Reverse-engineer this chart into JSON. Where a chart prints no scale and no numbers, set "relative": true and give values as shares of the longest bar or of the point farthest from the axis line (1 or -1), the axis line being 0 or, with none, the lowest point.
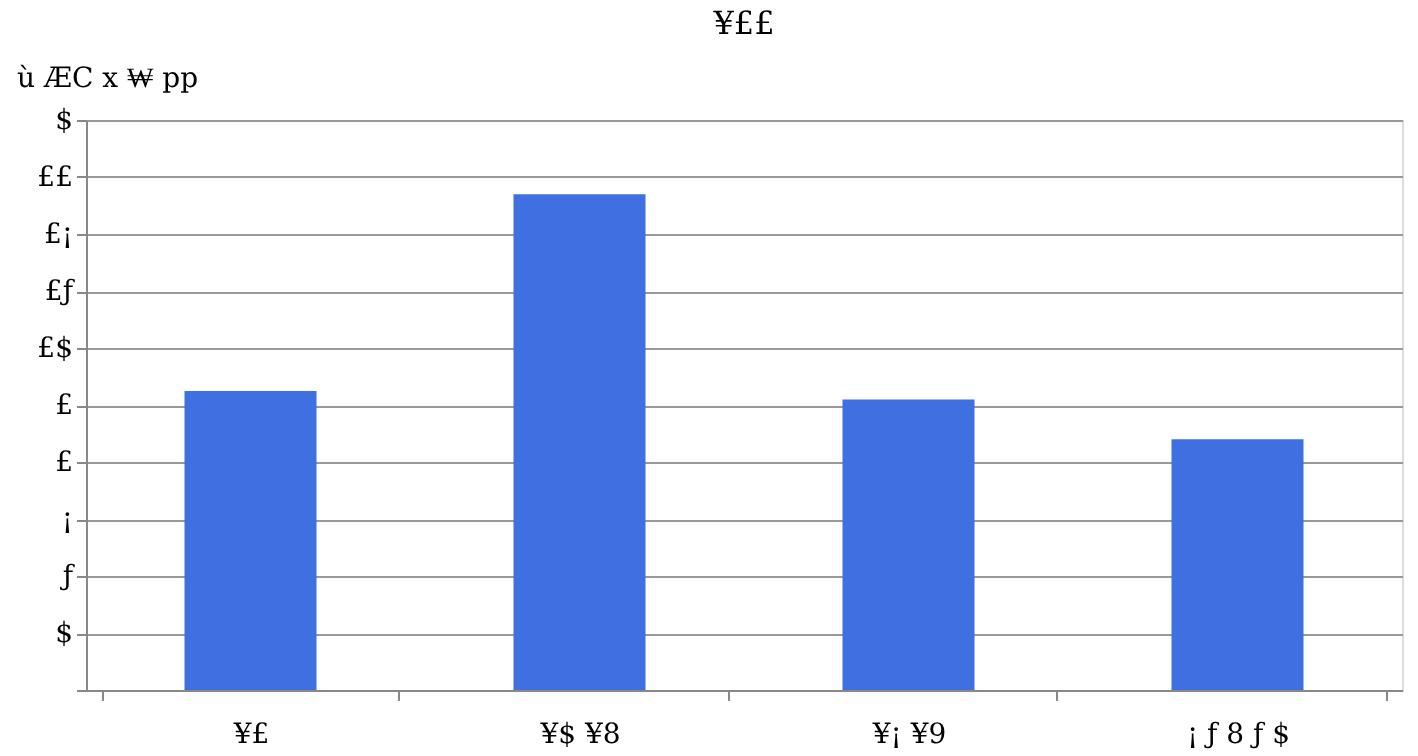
{
  "chart_data": {
    "type": "bar",
    "title": "¥££",
    "ylabel": "ù ÆC x ₩ pp",
    "categories": [
      "¥£",
      "¥$ ¥8",
      "¥¡ ¥9",
      "¡ ƒ 8 ƒ $"
    ],
    "values": [
      0.603,
      1,
      0.586,
      0.506
    ],
    "color": "#3f6fe0",
    "relative": true,
    "annotations": [
      "$",
      "ƒ",
      "¡",
      "£",
      "£",
      "£$",
      "£ƒ",
      "£¡",
      "££",
      "$"
    ],
    "grid": "y"
  }
}
